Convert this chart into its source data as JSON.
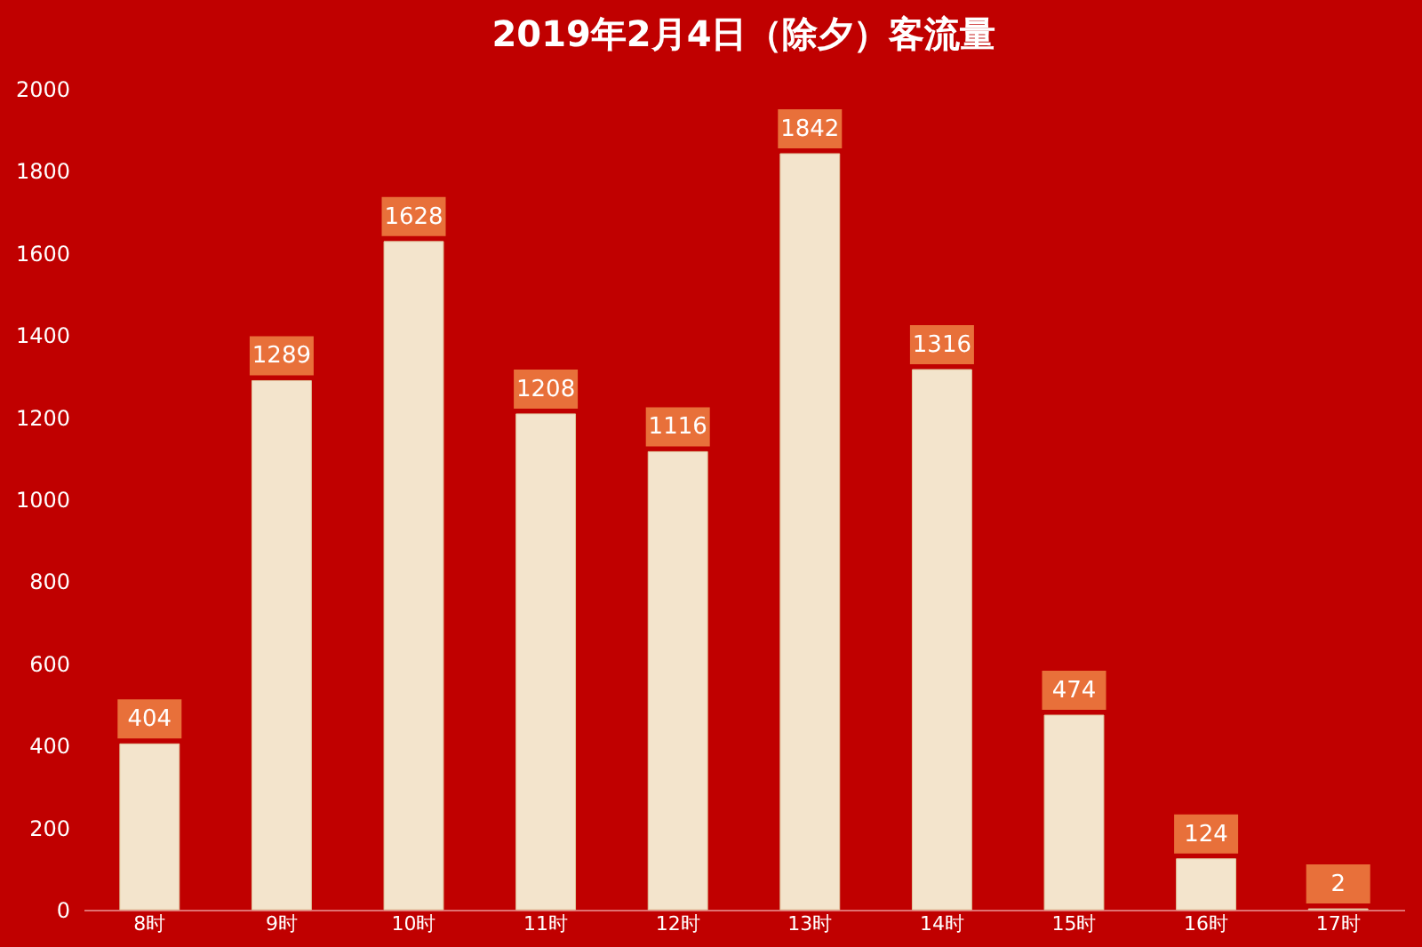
{
  "chart_data": {
    "type": "bar",
    "title": "2019年2月4日（除夕）客流量",
    "categories": [
      "8时",
      "9时",
      "10时",
      "11时",
      "12时",
      "13时",
      "14时",
      "15时",
      "16时",
      "17时"
    ],
    "values": [
      404,
      1289,
      1628,
      1208,
      1116,
      1842,
      1316,
      474,
      124,
      2
    ],
    "color": "#f3e4cc",
    "ylim": [
      0,
      2000
    ],
    "yticks": [
      0,
      200,
      400,
      600,
      800,
      1000,
      1200,
      1400,
      1600,
      1800,
      2000
    ],
    "data_labels": true
  }
}
